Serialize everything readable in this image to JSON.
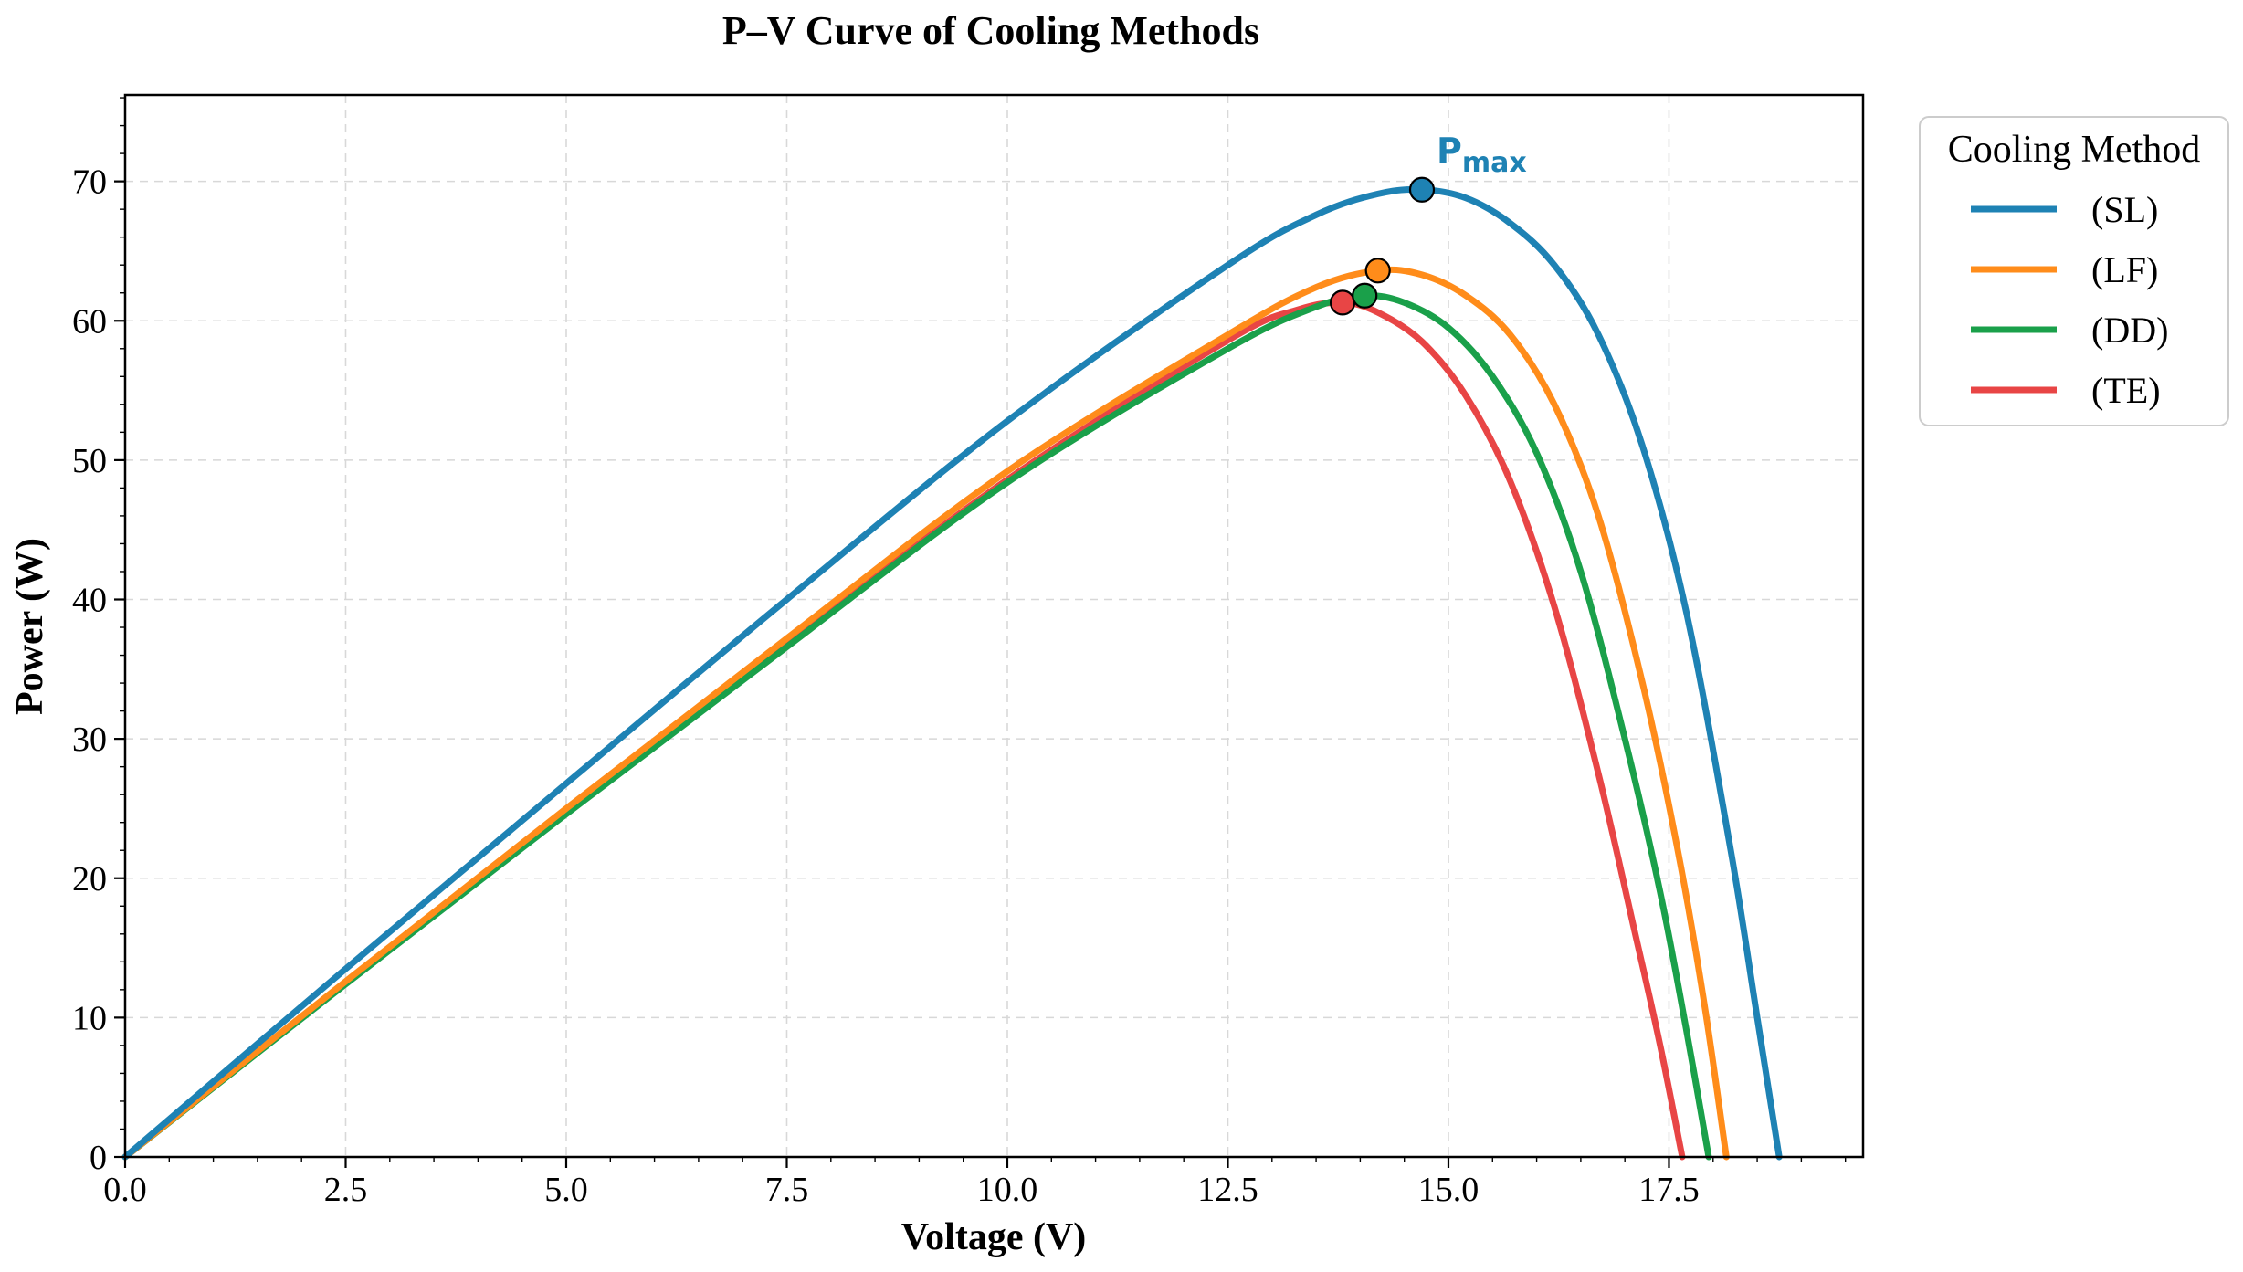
{
  "chart_data": {
    "type": "line",
    "title": "P–V Curve of Cooling Methods",
    "xlabel": "Voltage (V)",
    "ylabel": "Power (W)",
    "xlim": [
      0,
      19.7
    ],
    "ylim": [
      0,
      76.2
    ],
    "grid": true,
    "x_ticks": [
      "0.0",
      "2.5",
      "5.0",
      "7.5",
      "10.0",
      "12.5",
      "15.0",
      "17.5"
    ],
    "x_tick_values": [
      0,
      2.5,
      5.0,
      7.5,
      10.0,
      12.5,
      15.0,
      17.5
    ],
    "y_ticks": [
      "0",
      "10",
      "20",
      "30",
      "40",
      "50",
      "60",
      "70"
    ],
    "y_tick_values": [
      0,
      10,
      20,
      30,
      40,
      50,
      60,
      70
    ],
    "legend": {
      "title": "Cooling Method",
      "placement": "outside-right"
    },
    "annotation": {
      "text_main": "P",
      "text_sub": "max",
      "series": "(SL)"
    },
    "series": [
      {
        "name": "(SL)",
        "color": "#1e82b4",
        "x": [
          0,
          2.5,
          5.0,
          7.5,
          10.0,
          12.5,
          13.5,
          14.2,
          14.7,
          15.2,
          15.7,
          16.2,
          16.7,
          17.2,
          17.7,
          18.2,
          18.5,
          18.75
        ],
        "y": [
          0,
          13.5,
          26.8,
          40.0,
          52.8,
          64.0,
          67.6,
          69.1,
          69.4,
          68.8,
          67.0,
          64.0,
          59.0,
          51.0,
          39.0,
          22.0,
          10.0,
          0
        ],
        "pmax": {
          "v": 14.7,
          "p": 69.4
        }
      },
      {
        "name": "(LF)",
        "color": "#ff8c1a",
        "x": [
          0,
          2.5,
          5.0,
          7.5,
          10.0,
          12.5,
          13.5,
          14.2,
          14.7,
          15.2,
          15.7,
          16.2,
          16.7,
          17.2,
          17.6,
          17.9,
          18.15
        ],
        "y": [
          0,
          12.6,
          25.0,
          37.2,
          49.2,
          59.0,
          62.4,
          63.6,
          63.3,
          61.8,
          59.0,
          54.0,
          46.0,
          34.0,
          22.0,
          11.0,
          0
        ],
        "pmax": {
          "v": 14.2,
          "p": 63.6
        }
      },
      {
        "name": "(DD)",
        "color": "#1aa04a",
        "x": [
          0,
          2.5,
          5.0,
          7.5,
          10.0,
          12.5,
          13.5,
          14.05,
          14.5,
          15.0,
          15.5,
          16.0,
          16.5,
          17.0,
          17.4,
          17.7,
          17.95
        ],
        "y": [
          0,
          12.4,
          24.6,
          36.6,
          48.4,
          58.0,
          61.0,
          61.8,
          61.3,
          59.5,
          56.0,
          50.5,
          42.0,
          30.0,
          19.0,
          9.0,
          0
        ],
        "pmax": {
          "v": 14.05,
          "p": 61.8
        }
      },
      {
        "name": "(TE)",
        "color": "#e84545",
        "x": [
          0,
          2.5,
          5.0,
          7.5,
          10.0,
          12.5,
          13.3,
          13.8,
          14.2,
          14.7,
          15.2,
          15.7,
          16.2,
          16.7,
          17.1,
          17.4,
          17.65
        ],
        "y": [
          0,
          12.5,
          24.8,
          36.8,
          48.6,
          58.6,
          60.8,
          61.3,
          60.6,
          58.5,
          54.6,
          48.5,
          39.5,
          27.5,
          16.5,
          8.0,
          0
        ],
        "pmax": {
          "v": 13.8,
          "p": 61.3
        }
      }
    ]
  }
}
